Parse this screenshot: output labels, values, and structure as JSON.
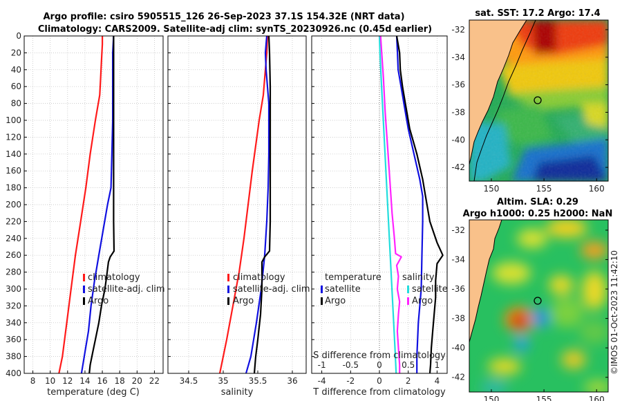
{
  "title": {
    "line1": "Argo profile: csiro 5905515_126 26-Sep-2023 37.1S 154.32E (NRT data)",
    "line2": "Climatology: CARS2009. Satellite-adj clim: synTS_20230926.nc (0.45d earlier)"
  },
  "colors": {
    "climatology": "#ff1a1a",
    "satellite": "#1010e0",
    "argo": "#000000",
    "sal_diff": "#ff22ff",
    "sat_sal_diff": "#22dddd",
    "land": "#f9c18a"
  },
  "chart_data": [
    {
      "type": "line",
      "name": "temperature",
      "xlabel": "temperature (deg C)",
      "xlim": [
        7,
        23
      ],
      "xticks": [
        "8",
        "10",
        "12",
        "14",
        "16",
        "18",
        "20",
        "22"
      ],
      "ylim": [
        0,
        400
      ],
      "yticks": [
        "0",
        "20",
        "40",
        "60",
        "80",
        "100",
        "120",
        "140",
        "160",
        "180",
        "200",
        "220",
        "240",
        "260",
        "280",
        "300",
        "320",
        "340",
        "360",
        "380",
        "400"
      ],
      "legend": [
        "climatology",
        "satellite-adj. clim",
        "Argo"
      ],
      "series": [
        {
          "name": "climatology",
          "color": "#ff1a1a",
          "points": [
            [
              16.0,
              0
            ],
            [
              16.0,
              10
            ],
            [
              15.9,
              30
            ],
            [
              15.8,
              50
            ],
            [
              15.7,
              70
            ],
            [
              15.2,
              100
            ],
            [
              14.6,
              140
            ],
            [
              14.1,
              180
            ],
            [
              13.5,
              220
            ],
            [
              12.9,
              260
            ],
            [
              12.4,
              300
            ],
            [
              11.9,
              340
            ],
            [
              11.4,
              380
            ],
            [
              11.0,
              400
            ]
          ]
        },
        {
          "name": "satellite-adj. clim",
          "color": "#1010e0",
          "points": [
            [
              17.3,
              0
            ],
            [
              17.2,
              20
            ],
            [
              17.2,
              60
            ],
            [
              17.2,
              100
            ],
            [
              17.1,
              140
            ],
            [
              17.0,
              180
            ],
            [
              16.6,
              200
            ],
            [
              16.1,
              230
            ],
            [
              15.6,
              260
            ],
            [
              15.1,
              290
            ],
            [
              14.7,
              320
            ],
            [
              14.4,
              350
            ],
            [
              14.0,
              375
            ],
            [
              13.6,
              400
            ]
          ]
        },
        {
          "name": "Argo",
          "color": "#000000",
          "points": [
            [
              17.3,
              0
            ],
            [
              17.3,
              20
            ],
            [
              17.3,
              60
            ],
            [
              17.3,
              100
            ],
            [
              17.3,
              140
            ],
            [
              17.3,
              180
            ],
            [
              17.3,
              220
            ],
            [
              17.35,
              255
            ],
            [
              16.9,
              262
            ],
            [
              16.7,
              268
            ],
            [
              16.5,
              285
            ],
            [
              16.3,
              300
            ],
            [
              15.9,
              320
            ],
            [
              15.6,
              340
            ],
            [
              15.2,
              360
            ],
            [
              14.9,
              375
            ],
            [
              14.6,
              390
            ],
            [
              14.5,
              400
            ]
          ]
        }
      ]
    },
    {
      "type": "line",
      "name": "salinity",
      "xlabel": "salinity",
      "xlim": [
        34.2,
        36.2
      ],
      "xticks": [
        "34.5",
        "35",
        "35.5",
        "36"
      ],
      "ylim": [
        0,
        400
      ],
      "legend": [
        "climatology",
        "satellite-adj. clim",
        "Argo"
      ],
      "series": [
        {
          "name": "climatology",
          "color": "#ff1a1a",
          "points": [
            [
              35.64,
              0
            ],
            [
              35.63,
              20
            ],
            [
              35.61,
              40
            ],
            [
              35.58,
              70
            ],
            [
              35.52,
              100
            ],
            [
              35.47,
              130
            ],
            [
              35.42,
              160
            ],
            [
              35.36,
              200
            ],
            [
              35.3,
              240
            ],
            [
              35.23,
              280
            ],
            [
              35.14,
              320
            ],
            [
              35.05,
              360
            ],
            [
              34.95,
              400
            ]
          ]
        },
        {
          "name": "satellite-adj. clim",
          "color": "#1010e0",
          "points": [
            [
              35.63,
              0
            ],
            [
              35.61,
              20
            ],
            [
              35.62,
              40
            ],
            [
              35.64,
              60
            ],
            [
              35.66,
              80
            ],
            [
              35.66,
              100
            ],
            [
              35.66,
              140
            ],
            [
              35.65,
              180
            ],
            [
              35.63,
              220
            ],
            [
              35.6,
              260
            ],
            [
              35.55,
              300
            ],
            [
              35.48,
              340
            ],
            [
              35.4,
              380
            ],
            [
              35.33,
              400
            ]
          ]
        },
        {
          "name": "Argo",
          "color": "#000000",
          "points": [
            [
              35.66,
              0
            ],
            [
              35.67,
              20
            ],
            [
              35.68,
              60
            ],
            [
              35.68,
              100
            ],
            [
              35.68,
              140
            ],
            [
              35.68,
              180
            ],
            [
              35.68,
              220
            ],
            [
              35.67,
              255
            ],
            [
              35.6,
              262
            ],
            [
              35.56,
              268
            ],
            [
              35.56,
              300
            ],
            [
              35.54,
              330
            ],
            [
              35.5,
              360
            ],
            [
              35.47,
              380
            ],
            [
              35.45,
              400
            ]
          ]
        }
      ]
    },
    {
      "type": "line",
      "name": "difference",
      "xlabel": "T difference from climatology",
      "xlabel_top": "S difference from climatology",
      "xlim": [
        -4.7,
        4.7
      ],
      "xticks": [
        "-4",
        "-2",
        "0",
        "2",
        "4"
      ],
      "xticks_top": [
        "-1",
        "-0.5",
        "0",
        "0.5",
        "1"
      ],
      "ylim": [
        0,
        400
      ],
      "legend_left": {
        "title": "temperature",
        "items": [
          "satellite",
          "Argo"
        ]
      },
      "legend_right": {
        "title": "salinity",
        "items": [
          "satellite",
          "Argo"
        ]
      },
      "series": [
        {
          "name": "T satellite",
          "color": "#1010e0",
          "points": [
            [
              1.2,
              0
            ],
            [
              1.25,
              20
            ],
            [
              1.3,
              40
            ],
            [
              1.5,
              60
            ],
            [
              1.7,
              80
            ],
            [
              2.0,
              110
            ],
            [
              2.4,
              140
            ],
            [
              2.8,
              170
            ],
            [
              3.0,
              190
            ],
            [
              3.0,
              220
            ],
            [
              2.95,
              260
            ],
            [
              2.9,
              300
            ],
            [
              2.7,
              340
            ],
            [
              2.6,
              380
            ],
            [
              2.6,
              400
            ]
          ]
        },
        {
          "name": "T Argo",
          "color": "#000000",
          "points": [
            [
              1.2,
              0
            ],
            [
              1.4,
              20
            ],
            [
              1.45,
              40
            ],
            [
              1.6,
              60
            ],
            [
              1.8,
              80
            ],
            [
              2.1,
              110
            ],
            [
              2.6,
              140
            ],
            [
              3.0,
              170
            ],
            [
              3.2,
              190
            ],
            [
              3.5,
              220
            ],
            [
              4.0,
              245
            ],
            [
              4.4,
              260
            ],
            [
              4.0,
              270
            ],
            [
              3.9,
              290
            ],
            [
              3.9,
              310
            ],
            [
              3.8,
              330
            ],
            [
              3.7,
              350
            ],
            [
              3.6,
              370
            ],
            [
              3.55,
              390
            ],
            [
              3.5,
              400
            ]
          ]
        },
        {
          "name": "S satellite",
          "color": "#22dddd",
          "points": [
            [
              0.0,
              0
            ],
            [
              0.01,
              20
            ],
            [
              0.03,
              50
            ],
            [
              0.06,
              90
            ],
            [
              0.09,
              130
            ],
            [
              0.12,
              170
            ],
            [
              0.15,
              210
            ],
            [
              0.18,
              250
            ],
            [
              0.21,
              290
            ],
            [
              0.24,
              330
            ],
            [
              0.27,
              370
            ],
            [
              0.29,
              400
            ]
          ]
        },
        {
          "name": "S Argo",
          "color": "#ff22ff",
          "points": [
            [
              0.02,
              0
            ],
            [
              0.04,
              20
            ],
            [
              0.07,
              50
            ],
            [
              0.1,
              90
            ],
            [
              0.14,
              130
            ],
            [
              0.18,
              170
            ],
            [
              0.22,
              210
            ],
            [
              0.26,
              240
            ],
            [
              0.28,
              258
            ],
            [
              0.38,
              262
            ],
            [
              0.3,
              272
            ],
            [
              0.33,
              285
            ],
            [
              0.31,
              300
            ],
            [
              0.35,
              315
            ],
            [
              0.33,
              330
            ],
            [
              0.31,
              350
            ],
            [
              0.33,
              370
            ],
            [
              0.35,
              390
            ],
            [
              0.35,
              400
            ]
          ]
        }
      ]
    },
    {
      "type": "heatmap",
      "name": "sst_map",
      "title": "sat. SST: 17.2 Argo: 17.4",
      "xticks": [
        "150",
        "155",
        "160"
      ],
      "yticks": [
        "-32",
        "-34",
        "-36",
        "-38",
        "-40",
        "-42"
      ],
      "argo_position": [
        154.32,
        -37.1
      ]
    },
    {
      "type": "heatmap",
      "name": "sla_map",
      "title_line1": "Altim. SLA: 0.29",
      "title_line2": "Argo h1000: 0.25 h2000: NaN",
      "xticks": [
        "150",
        "155",
        "160"
      ],
      "yticks": [
        "-32",
        "-34",
        "-36",
        "-38",
        "-40",
        "-42"
      ],
      "argo_position": [
        154.32,
        -37.1
      ]
    }
  ],
  "watermark": "©IMOS 01-Oct-2023 11:42:10"
}
